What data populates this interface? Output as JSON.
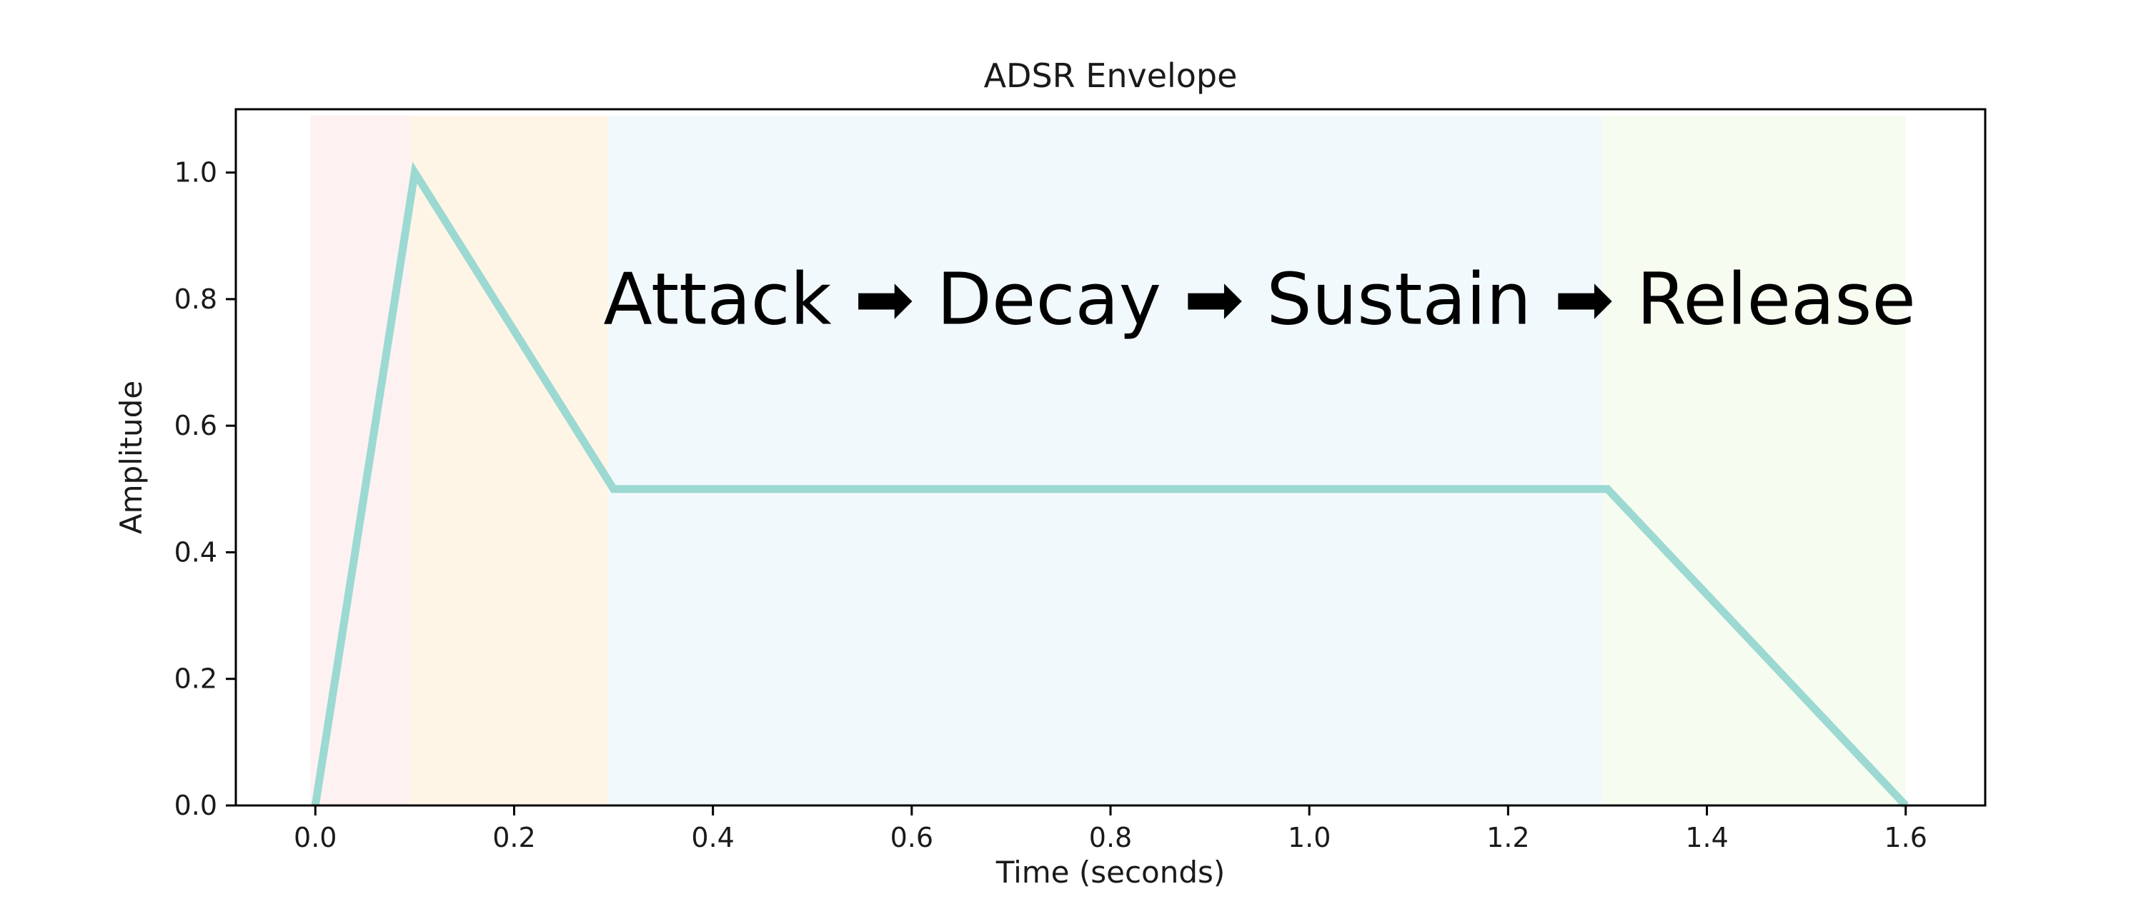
{
  "chart_data": {
    "type": "line",
    "title": "ADSR Envelope",
    "xlabel": "Time (seconds)",
    "ylabel": "Amplitude",
    "xlim": [
      -0.08,
      1.68
    ],
    "ylim": [
      0.0,
      1.1
    ],
    "xticks": [
      0.0,
      0.2,
      0.4,
      0.6,
      0.8,
      1.0,
      1.2,
      1.4,
      1.6
    ],
    "xtick_labels": [
      "0.0",
      "0.2",
      "0.4",
      "0.6",
      "0.8",
      "1.0",
      "1.2",
      "1.4",
      "1.6"
    ],
    "yticks": [
      0.0,
      0.2,
      0.4,
      0.6,
      0.8,
      1.0
    ],
    "ytick_labels": [
      "0.0",
      "0.2",
      "0.4",
      "0.6",
      "0.8",
      "1.0"
    ],
    "grid": false,
    "series": [
      {
        "color": "#9bd9d2",
        "x": [
          0.0,
          0.1,
          0.3,
          1.3,
          1.6
        ],
        "y": [
          0.0,
          1.0,
          0.5,
          0.5,
          0.0
        ]
      }
    ],
    "regions": [
      {
        "start": -0.005,
        "end": 0.095,
        "color": "#fdf1f1"
      },
      {
        "start": 0.095,
        "end": 0.295,
        "color": "#fff5e6"
      },
      {
        "start": 0.295,
        "end": 1.295,
        "color": "#f2f9fd"
      },
      {
        "start": 1.295,
        "end": 1.6,
        "color": "#f7fcf1"
      }
    ],
    "annotation": {
      "text": "Attack ➡ Decay ➡ Sustain ➡ Release",
      "x": 0.95,
      "y": 0.8
    }
  }
}
